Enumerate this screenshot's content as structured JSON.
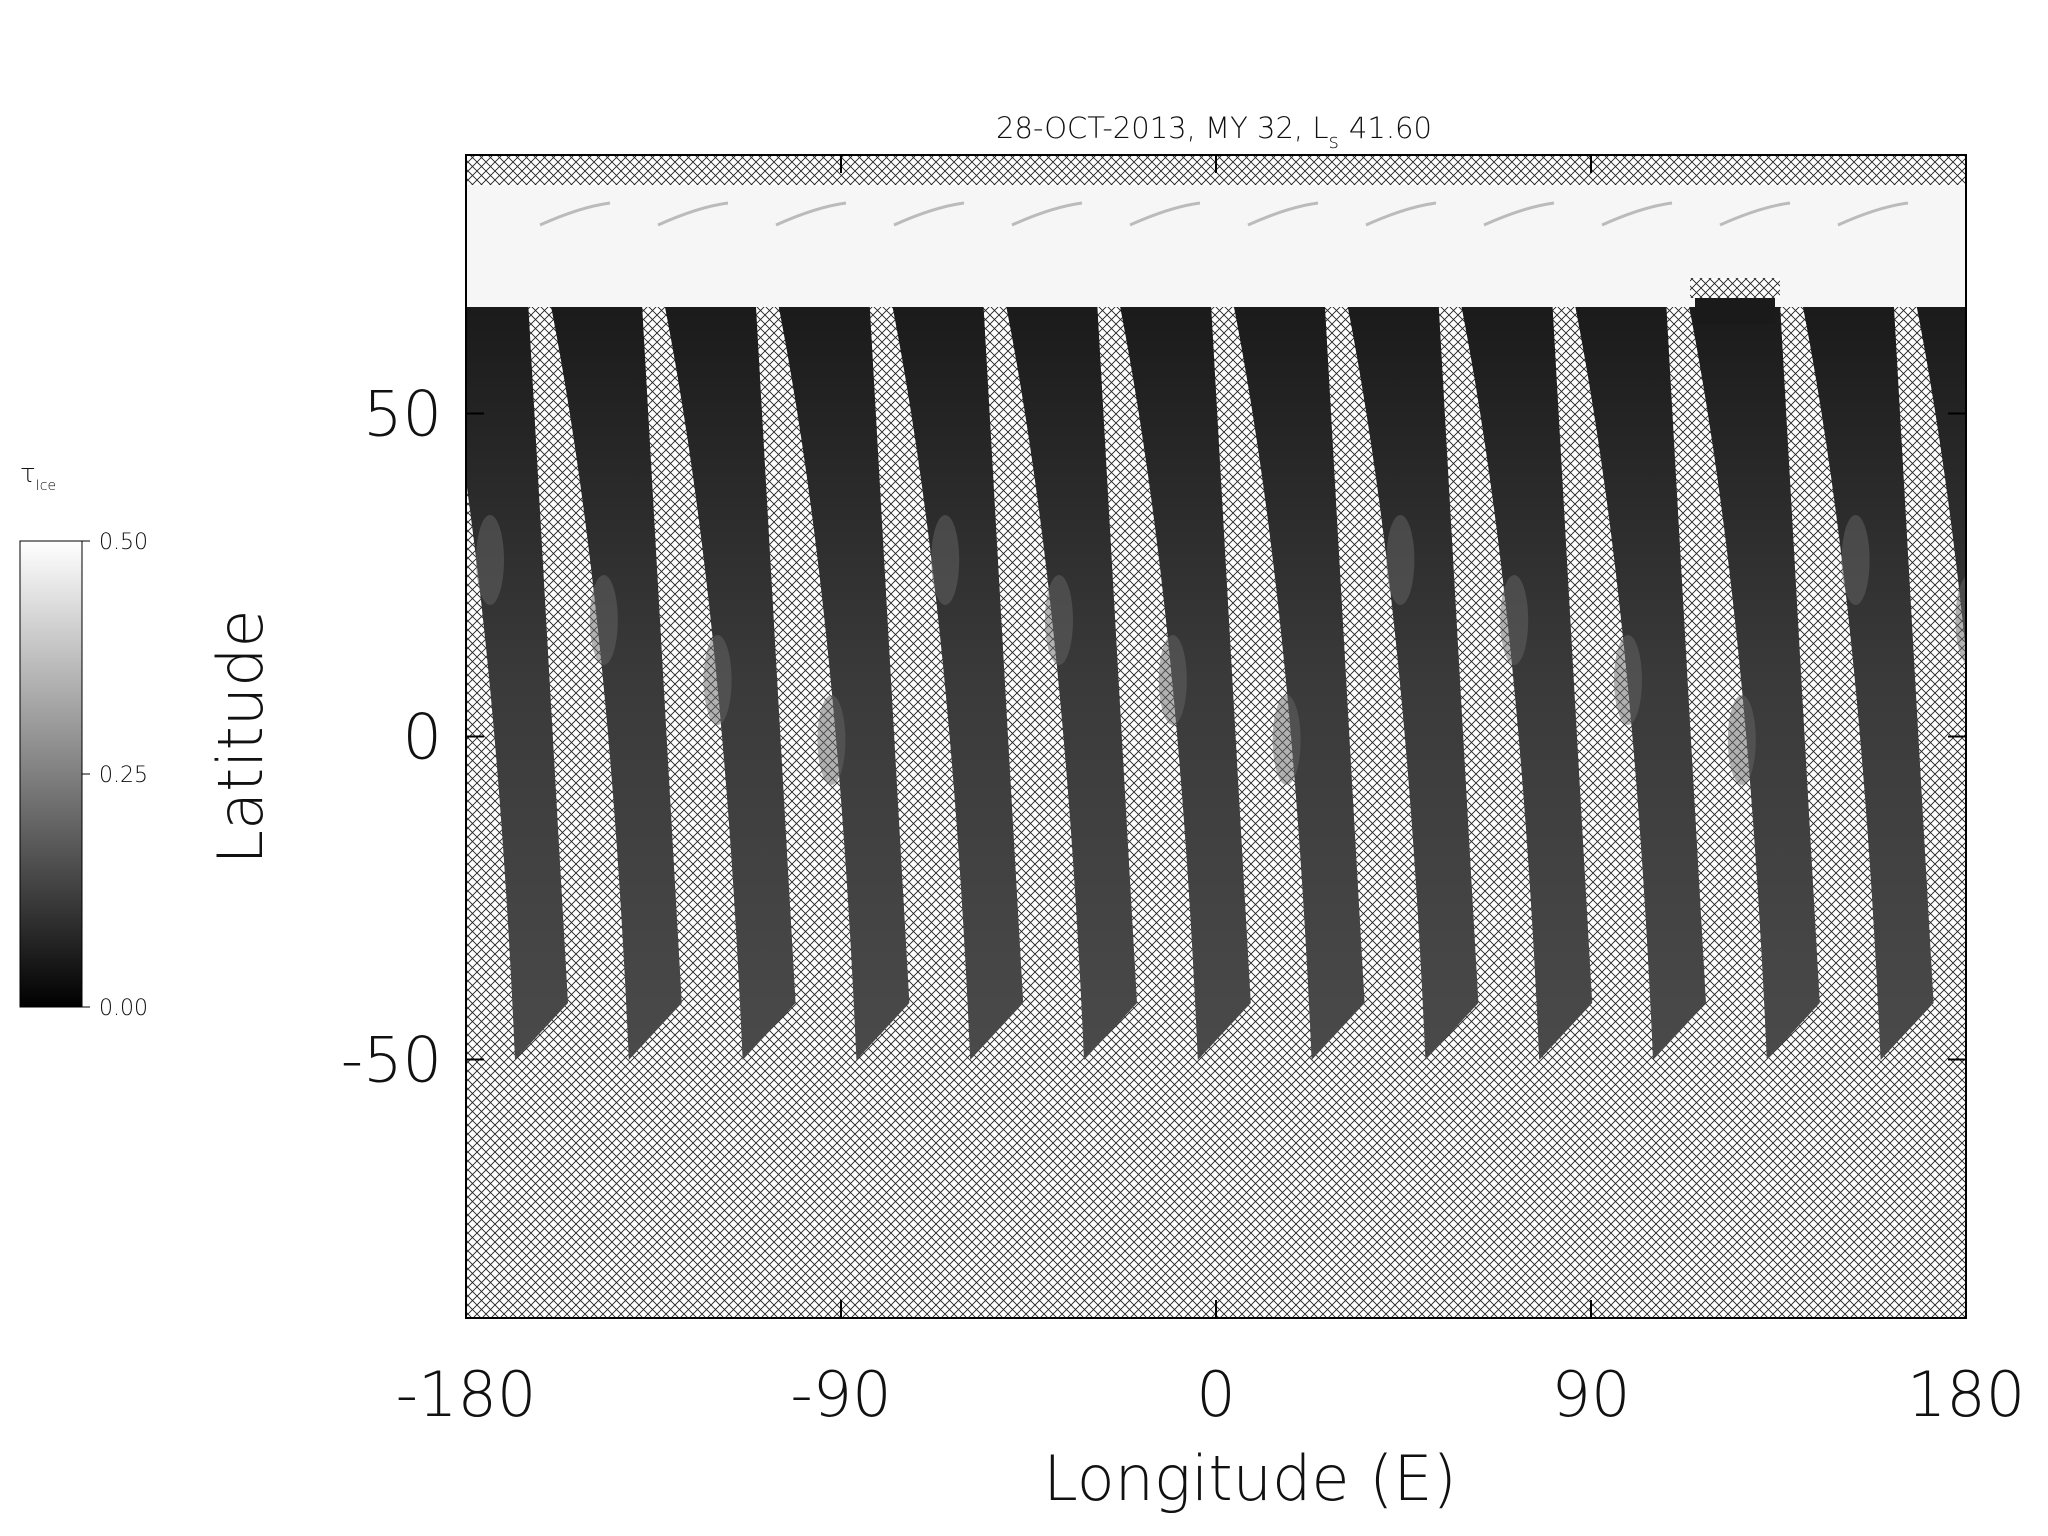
{
  "chart_data": {
    "type": "swath-map",
    "title": "28-OCT-2013, MY 32,  L",
    "title_subscript": "s",
    "title_value": "41.60",
    "xlabel": "Longitude (E)",
    "ylabel": "Latitude",
    "xlim": [
      -180,
      180
    ],
    "xticks": [
      -180,
      -90,
      0,
      90,
      180
    ],
    "ylim": [
      -90,
      90
    ],
    "yticks": [
      -50,
      0,
      50
    ],
    "colorbar": {
      "label": "τ",
      "label_subscript": "Ice",
      "clim": [
        0,
        0.5
      ],
      "ticks": [
        {
          "value": 0,
          "label": "0.00"
        },
        {
          "value": 0.25,
          "label": "0.25"
        },
        {
          "value": 0.5,
          "label": "0.50"
        }
      ]
    }
  }
}
